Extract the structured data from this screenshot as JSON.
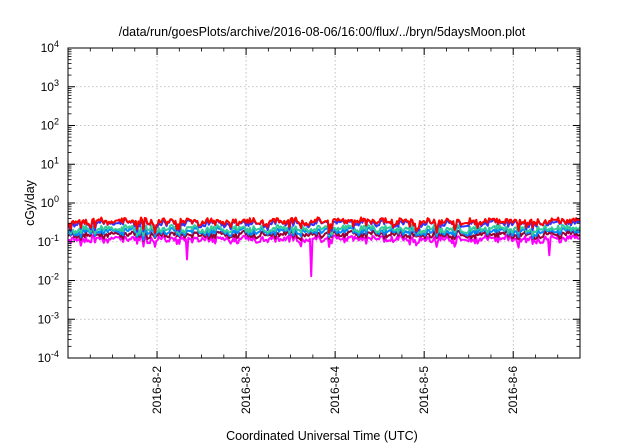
{
  "chart_data": {
    "type": "line",
    "title": "/data/run/goesPlots/archive/2016-08-06/16:00/flux/../bryn/5daysMoon.plot",
    "xlabel": "Coordinated Universal Time (UTC)",
    "ylabel": "cGy/day",
    "yscale": "log",
    "ylim": [
      0.0001,
      10000
    ],
    "xlim": [
      0,
      5.75
    ],
    "grid": true,
    "x_ticks": [
      {
        "value": 1,
        "label": "2016-8-2"
      },
      {
        "value": 2,
        "label": "2016-8-3"
      },
      {
        "value": 3,
        "label": "2016-8-4"
      },
      {
        "value": 4,
        "label": "2016-8-5"
      },
      {
        "value": 5,
        "label": "2016-8-6"
      }
    ],
    "y_ticks": [
      {
        "value": 0.0001,
        "base": "10",
        "exp": "-4"
      },
      {
        "value": 0.001,
        "base": "10",
        "exp": "-3"
      },
      {
        "value": 0.01,
        "base": "10",
        "exp": "-2"
      },
      {
        "value": 0.1,
        "base": "10",
        "exp": "-1"
      },
      {
        "value": 1,
        "base": "10",
        "exp": "0"
      },
      {
        "value": 10,
        "base": "10",
        "exp": "1"
      },
      {
        "value": 100,
        "base": "10",
        "exp": "2"
      },
      {
        "value": 1000,
        "base": "10",
        "exp": "3"
      },
      {
        "value": 10000,
        "base": "10",
        "exp": "4"
      }
    ],
    "series": [
      {
        "color": "#ff0000",
        "level": 0.34,
        "dip_depth": 0.55
      },
      {
        "color": "#3333ff",
        "level": 0.31,
        "dip_depth": 0.55
      },
      {
        "color": "#33cc99",
        "level": 0.22,
        "dip_depth": 0.35
      },
      {
        "color": "#0088ff",
        "level": 0.19,
        "dip_depth": 0.4
      },
      {
        "color": "#990033",
        "level": 0.155,
        "dip_depth": 0.25
      },
      {
        "color": "#ff00ff",
        "level": 0.12,
        "dip_depth": 0.45
      }
    ],
    "notable_dips": [
      {
        "x": 1.34,
        "value": 0.035
      },
      {
        "x": 2.73,
        "value": 0.013
      },
      {
        "x": 5.4,
        "value": 0.045
      }
    ]
  }
}
